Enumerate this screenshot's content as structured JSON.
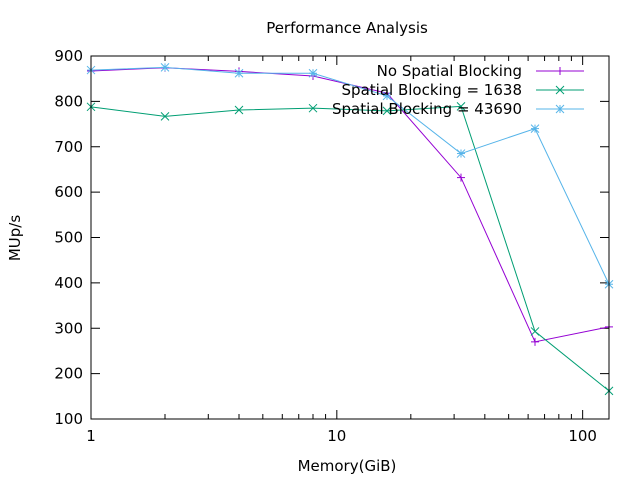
{
  "chart_data": {
    "type": "line",
    "title": "Performance Analysis",
    "xlabel": "Memory(GiB)",
    "ylabel": "MUp/s",
    "x_scale": "log",
    "xlim": [
      1,
      128
    ],
    "ylim": [
      100,
      900
    ],
    "x_ticks": [
      1,
      10,
      100
    ],
    "x_tick_labels": [
      "1",
      "10",
      "100"
    ],
    "y_ticks": [
      100,
      200,
      300,
      400,
      500,
      600,
      700,
      800,
      900
    ],
    "y_tick_labels": [
      "100",
      "200",
      "300",
      "400",
      "500",
      "600",
      "700",
      "800",
      "900"
    ],
    "grid": false,
    "legend_position": "top-right",
    "x": [
      1,
      2,
      4,
      8,
      16,
      32,
      64,
      128
    ],
    "series": [
      {
        "name": "No Spatial Blocking",
        "color": "#9400d3",
        "marker": "plus",
        "values": [
          867,
          874,
          866,
          856,
          818,
          632,
          270,
          303
        ]
      },
      {
        "name": "Spatial Blocking = 1638",
        "color": "#009e73",
        "marker": "cross",
        "values": [
          788,
          767,
          781,
          785,
          779,
          789,
          293,
          162
        ]
      },
      {
        "name": "Spatial Blocking = 43690",
        "color": "#56b4e9",
        "marker": "star",
        "values": [
          869,
          875,
          862,
          862,
          812,
          685,
          740,
          397
        ]
      }
    ]
  }
}
